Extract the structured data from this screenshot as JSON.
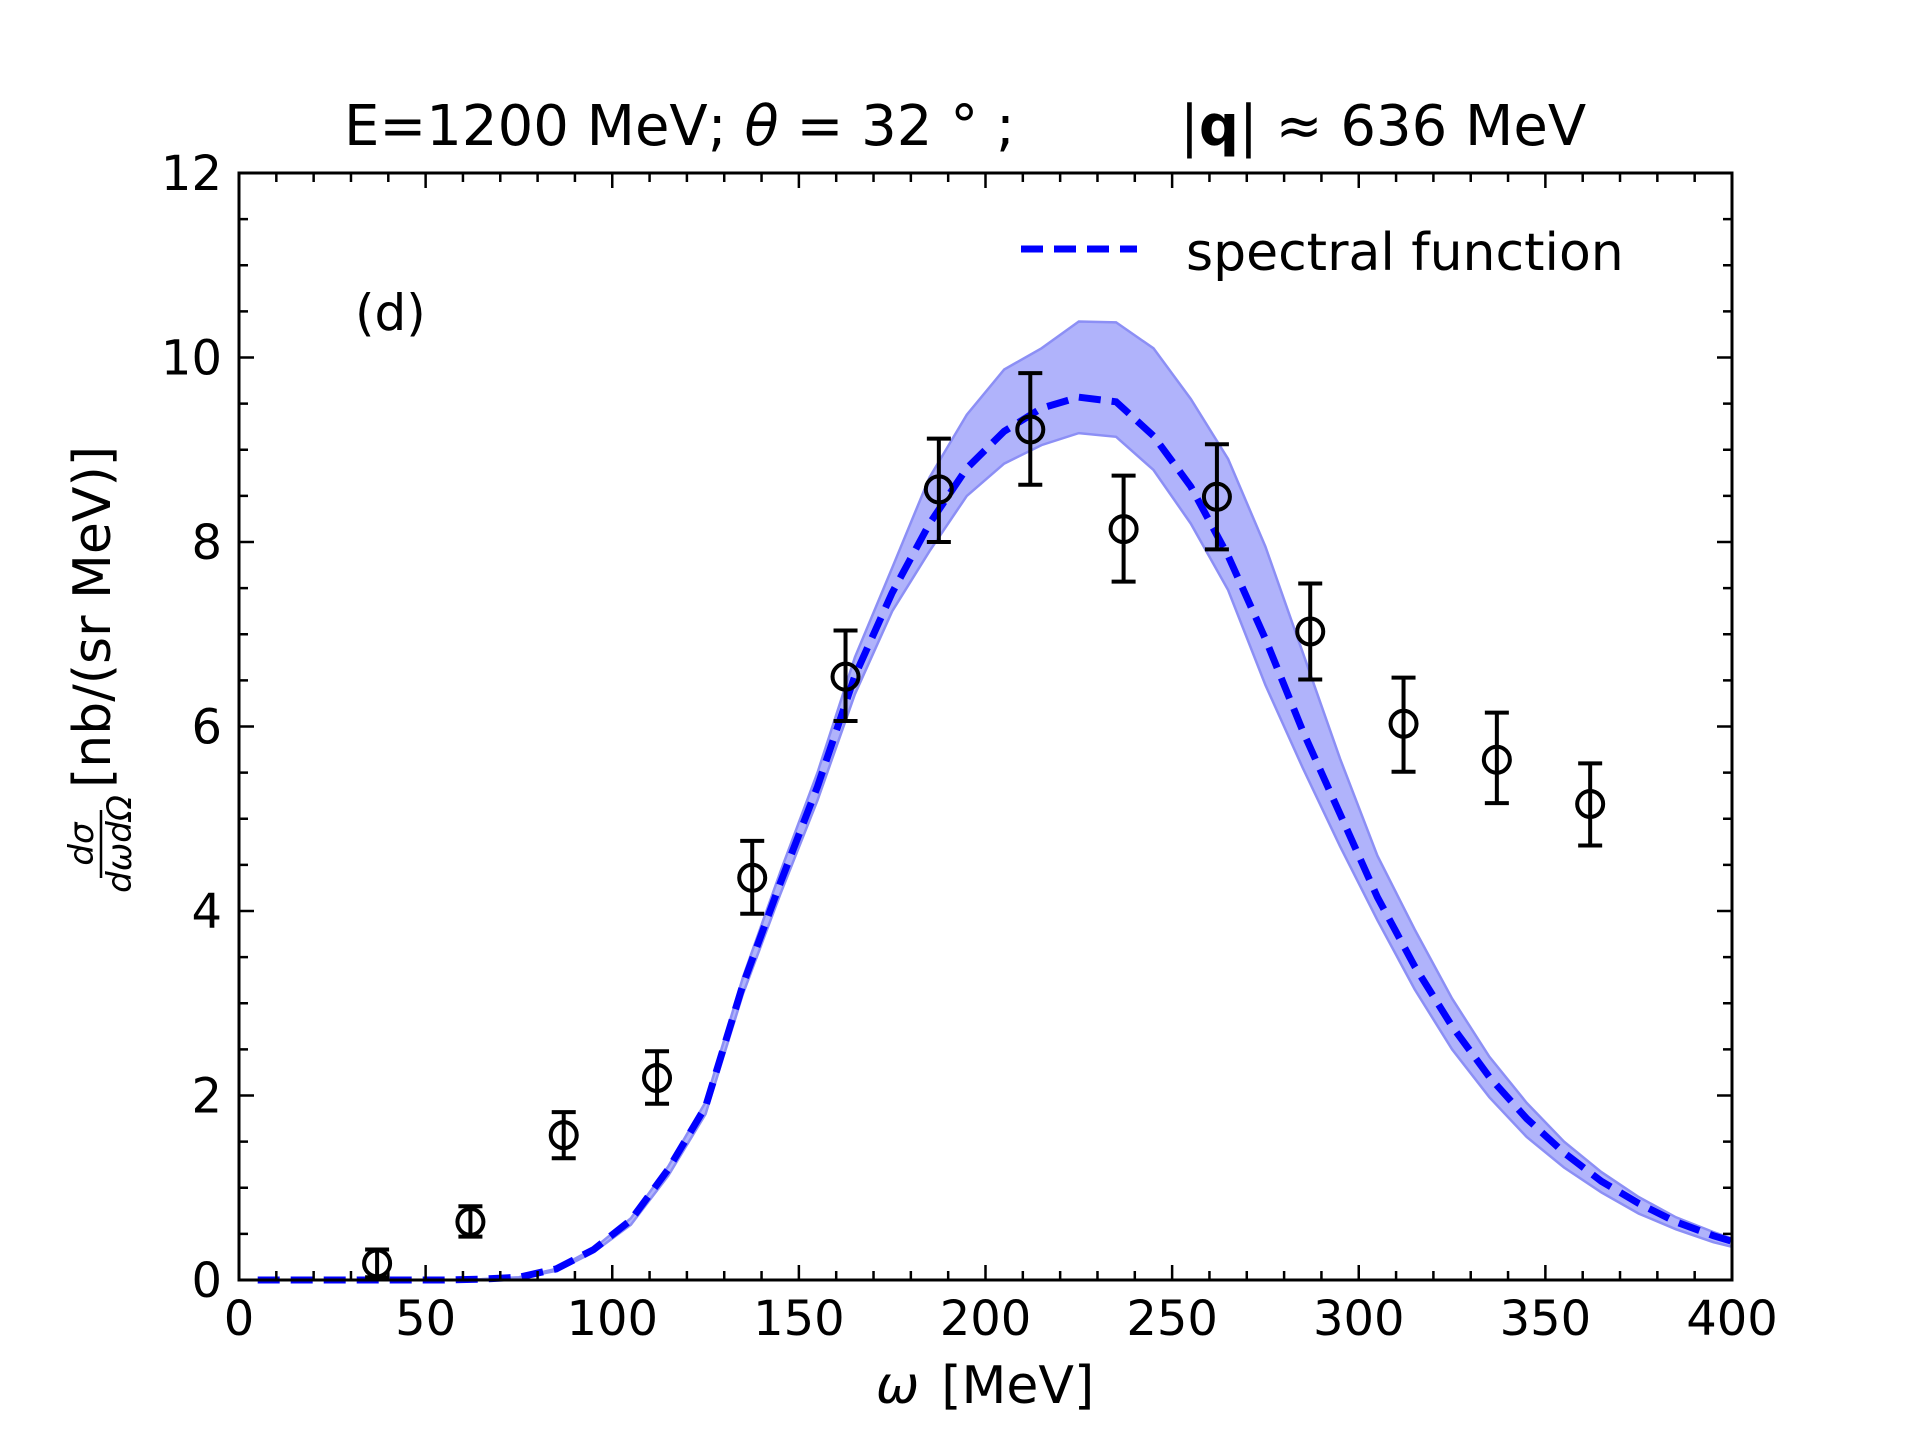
{
  "chart_data": {
    "type": "line",
    "title": "E=1200 MeV; θ = 32 ° ;      |q| ≈  636 MeV",
    "title_parts": {
      "left": "E=1200 MeV; ",
      "theta_symbol": "θ",
      "theta_value": " = 32 ° ;",
      "q_open": "|",
      "q_symbol": "q",
      "q_close": "|",
      "q_value": " ≈  636 MeV"
    },
    "panel_label": "(d)",
    "xlabel": "ω  [MeV]",
    "xlabel_symbol": "ω",
    "xlabel_unit": "[MeV]",
    "ylabel": "dσ/dωdΩ  [nb/(sr MeV)]",
    "ylabel_numerator": "dσ",
    "ylabel_denominator": "dωdΩ",
    "ylabel_unit": "[nb/(sr MeV)]",
    "xlim": [
      0,
      400
    ],
    "ylim": [
      0,
      12
    ],
    "xticks": [
      0,
      50,
      100,
      150,
      200,
      250,
      300,
      350,
      400
    ],
    "xtick_labels": [
      "0",
      "50",
      "100",
      "150",
      "200",
      "250",
      "300",
      "350",
      "400"
    ],
    "x_minor_step": 10,
    "yticks": [
      0,
      2,
      4,
      6,
      8,
      10,
      12
    ],
    "ytick_labels": [
      "0",
      "2",
      "4",
      "6",
      "8",
      "10",
      "12"
    ],
    "y_minor_step": 0.5,
    "grid": false,
    "legend": {
      "placement": "top-right",
      "entries": [
        {
          "label": "spectral function",
          "style": "dashed",
          "color": "#0000ff"
        }
      ]
    },
    "colors": {
      "line": "#0000ff",
      "band_fill": "#b0b3fb",
      "band_edge": "#8c8ff5",
      "data": "#000000"
    },
    "series": [
      {
        "name": "spectral function",
        "type": "line",
        "style": "dashed",
        "x": [
          5,
          15,
          25,
          35,
          45,
          55,
          65,
          75,
          85,
          95,
          105,
          115,
          125,
          135,
          145,
          155,
          165,
          175,
          185,
          195,
          205,
          215,
          225,
          235,
          245,
          255,
          265,
          275,
          285,
          295,
          305,
          315,
          325,
          335,
          345,
          355,
          365,
          375,
          385,
          395,
          400
        ],
        "y": [
          0,
          0,
          0,
          0,
          0,
          0,
          0.01,
          0.03,
          0.12,
          0.33,
          0.65,
          1.2,
          1.88,
          3.2,
          4.3,
          5.35,
          6.55,
          7.45,
          8.2,
          8.8,
          9.2,
          9.45,
          9.57,
          9.52,
          9.15,
          8.6,
          7.85,
          6.95,
          5.95,
          5.05,
          4.15,
          3.4,
          2.75,
          2.2,
          1.75,
          1.38,
          1.07,
          0.83,
          0.63,
          0.48,
          0.42
        ]
      },
      {
        "name": "uncertainty band",
        "type": "area",
        "x": [
          5,
          15,
          25,
          35,
          45,
          55,
          65,
          75,
          85,
          95,
          105,
          115,
          125,
          135,
          145,
          155,
          165,
          175,
          185,
          195,
          205,
          215,
          225,
          235,
          245,
          255,
          265,
          275,
          285,
          295,
          305,
          315,
          325,
          335,
          345,
          355,
          365,
          375,
          385,
          395,
          400
        ],
        "upper": [
          0,
          0,
          0,
          0,
          0,
          0,
          0.01,
          0.03,
          0.12,
          0.34,
          0.67,
          1.23,
          1.93,
          3.28,
          4.42,
          5.5,
          6.75,
          7.72,
          8.7,
          9.38,
          9.87,
          10.1,
          10.39,
          10.38,
          10.1,
          9.55,
          8.9,
          7.95,
          6.8,
          5.65,
          4.6,
          3.8,
          3.05,
          2.42,
          1.92,
          1.5,
          1.17,
          0.9,
          0.68,
          0.52,
          0.45
        ],
        "lower": [
          0,
          0,
          0,
          0,
          0,
          0,
          0,
          0.02,
          0.1,
          0.3,
          0.6,
          1.13,
          1.8,
          3.1,
          4.18,
          5.2,
          6.35,
          7.25,
          7.9,
          8.5,
          8.85,
          9.05,
          9.18,
          9.14,
          8.78,
          8.2,
          7.48,
          6.45,
          5.55,
          4.7,
          3.9,
          3.15,
          2.5,
          1.98,
          1.55,
          1.22,
          0.95,
          0.72,
          0.55,
          0.41,
          0.36
        ]
      },
      {
        "name": "experimental data",
        "type": "scatter",
        "marker": "open-circle",
        "x": [
          37,
          62,
          87,
          112,
          137.5,
          162.5,
          187.5,
          212,
          237,
          262,
          287,
          312,
          337,
          362
        ],
        "y": [
          0.18,
          0.63,
          1.57,
          2.19,
          4.36,
          6.54,
          8.57,
          9.22,
          8.14,
          8.49,
          7.03,
          6.03,
          5.64,
          5.16
        ],
        "yerr_upper": [
          0.33,
          0.8,
          1.82,
          2.48,
          4.76,
          7.04,
          9.12,
          9.83,
          8.72,
          9.06,
          7.55,
          6.53,
          6.15,
          5.6
        ],
        "yerr_lower": [
          0.03,
          0.47,
          1.32,
          1.91,
          3.97,
          6.06,
          8.0,
          8.62,
          7.57,
          7.92,
          6.51,
          5.51,
          5.17,
          4.71
        ]
      }
    ]
  }
}
